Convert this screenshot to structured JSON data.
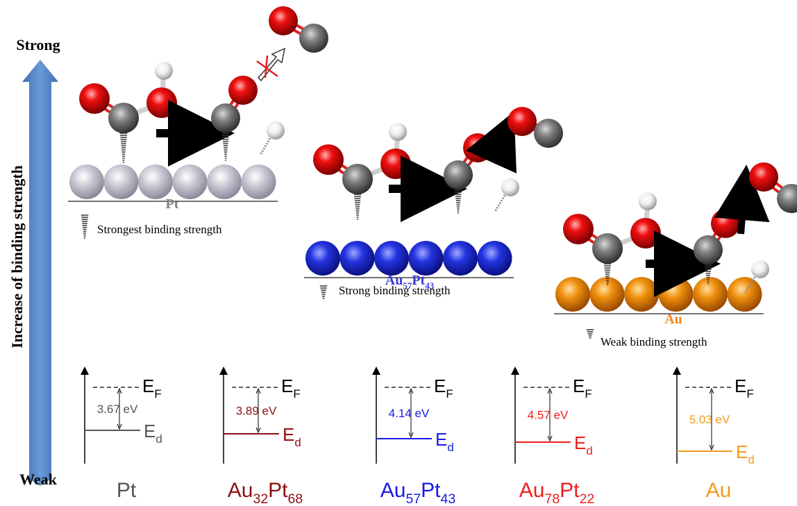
{
  "axis": {
    "top": "Strong",
    "bottom": "Weak",
    "label": "Increase of binding strength"
  },
  "surfaces": [
    {
      "label_parts": [
        "Pt"
      ],
      "caption": "Strongest binding strength",
      "color": "#7f7f7f"
    },
    {
      "label_parts": [
        "Au",
        "57",
        "Pt",
        "43"
      ],
      "caption": "Strong binding strength",
      "color": "#3b3bd6"
    },
    {
      "label_parts": [
        "Au"
      ],
      "caption": "Weak binding strength",
      "color": "#f0861a"
    }
  ],
  "energy_diagrams": {
    "fermi_parts": [
      "E",
      "F"
    ],
    "d_band_parts": [
      "E",
      "d"
    ],
    "panels": [
      {
        "label_parts": [
          "Pt"
        ],
        "gap": "3.67 eV",
        "color": "#555555"
      },
      {
        "label_parts": [
          "Au",
          "32",
          "Pt",
          "68"
        ],
        "gap": "3.89 eV",
        "color": "#8b1010"
      },
      {
        "label_parts": [
          "Au",
          "57",
          "Pt",
          "43"
        ],
        "gap": "4.14 eV",
        "color": "#1a1ae6"
      },
      {
        "label_parts": [
          "Au",
          "78",
          "Pt",
          "22"
        ],
        "gap": "4.57 eV",
        "color": "#ee1c1c"
      },
      {
        "label_parts": [
          "Au"
        ],
        "gap": "5.03 eV",
        "color": "#f39a1e"
      }
    ]
  }
}
